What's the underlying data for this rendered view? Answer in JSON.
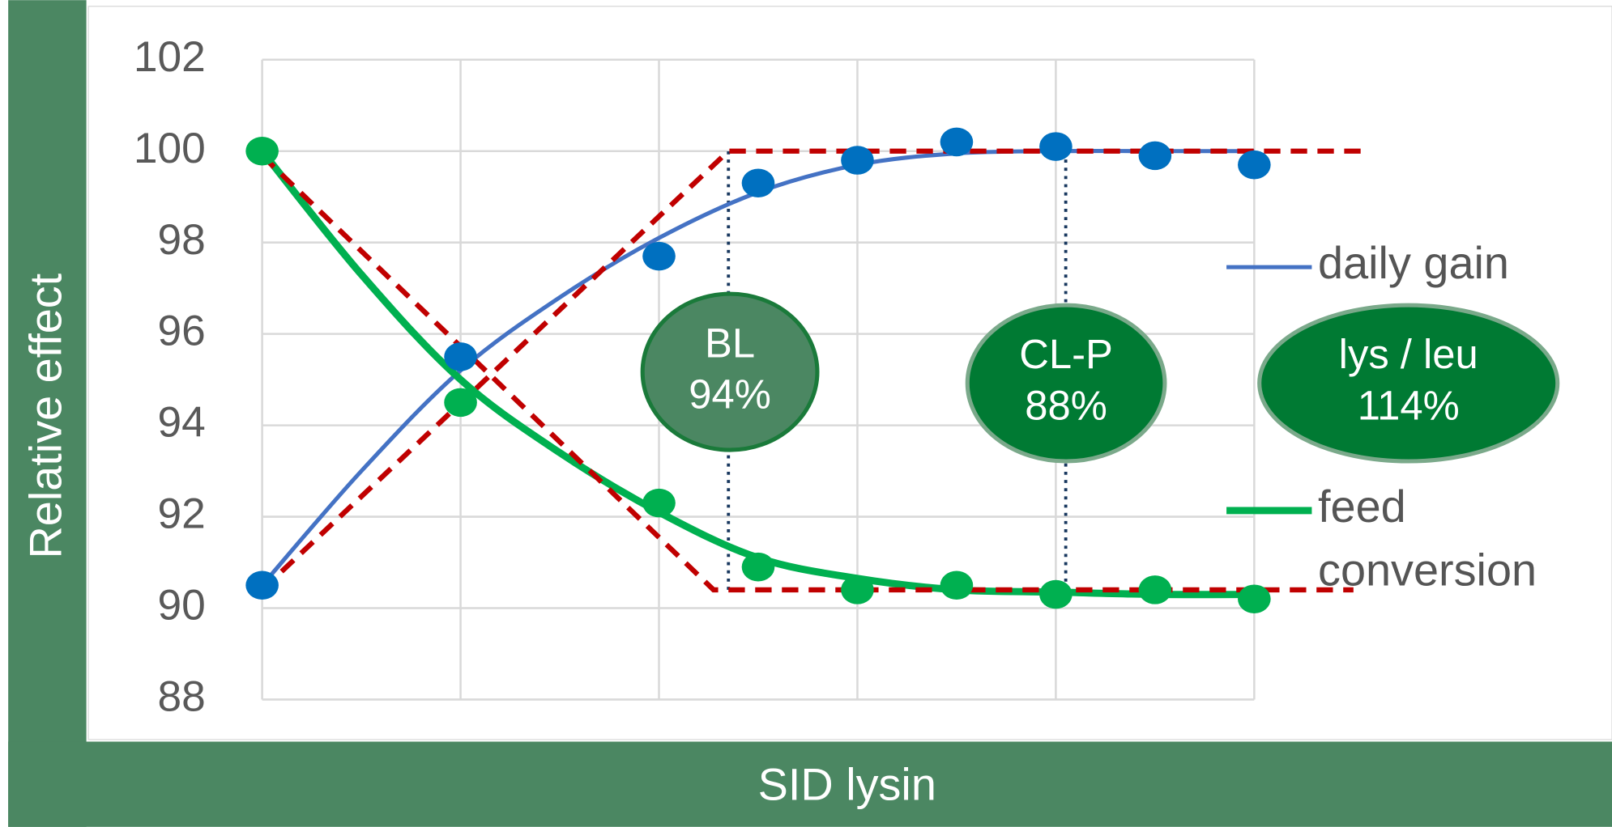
{
  "chart_data": {
    "type": "scatter",
    "y_label": "Relative effect",
    "x_label": "SID lysin",
    "xlim": [
      0,
      10
    ],
    "xticks": [
      0,
      2,
      4,
      6,
      8,
      10
    ],
    "ylim": [
      88,
      102
    ],
    "yticks": [
      88,
      90,
      92,
      94,
      96,
      98,
      100,
      102
    ],
    "grid": true,
    "series": [
      {
        "name": "daily gain",
        "color": "#4472c4",
        "point_color": "#0070c0",
        "x": [
          0,
          2,
          4,
          5,
          6,
          7,
          8,
          9,
          10
        ],
        "values": [
          90.5,
          95.5,
          97.7,
          99.3,
          99.8,
          100.2,
          100.1,
          99.9,
          99.7
        ],
        "fit_x": [
          0,
          1,
          2,
          3,
          4,
          5,
          6,
          7,
          8,
          9,
          10
        ],
        "fit": [
          90.5,
          93.0,
          95.2,
          96.8,
          98.1,
          99.1,
          99.7,
          99.95,
          100,
          100,
          100
        ],
        "model_x": [
          0,
          4.7,
          11.1
        ],
        "model": [
          90.4,
          100,
          100
        ]
      },
      {
        "name": "feed conversion",
        "color": "#00b050",
        "point_color": "#00b050",
        "x": [
          0,
          2,
          4,
          5,
          6,
          7,
          8,
          9,
          10
        ],
        "values": [
          100,
          94.5,
          92.3,
          90.9,
          90.4,
          90.5,
          90.3,
          90.4,
          90.2
        ],
        "fit_x": [
          0,
          1,
          2,
          3,
          4,
          5,
          6,
          7,
          8,
          9,
          10
        ],
        "fit": [
          100,
          97.3,
          95.0,
          93.4,
          92.1,
          91.1,
          90.65,
          90.4,
          90.35,
          90.3,
          90.3
        ],
        "model_x": [
          0,
          4.55,
          11
        ],
        "model": [
          99.9,
          90.4,
          90.4
        ]
      }
    ],
    "model_color": "#c00000",
    "reference_lines": [
      {
        "x": 4.7,
        "y": [
          90.4,
          100
        ]
      },
      {
        "x": 8.1,
        "y": [
          90.4,
          100
        ]
      }
    ],
    "annotations": [
      {
        "lines": [
          "BL",
          "94%"
        ]
      },
      {
        "lines": [
          "CL-P",
          "88%"
        ]
      },
      {
        "lines": [
          "lys / leu",
          "114%"
        ]
      }
    ]
  }
}
